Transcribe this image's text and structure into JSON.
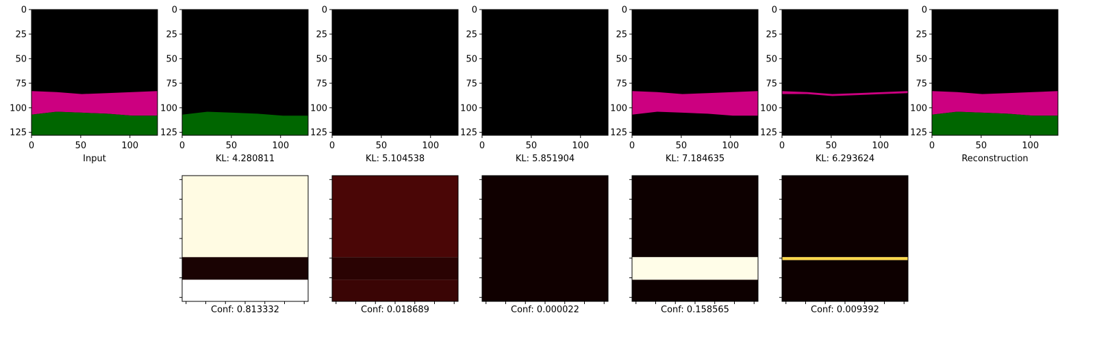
{
  "chart_data": {
    "type": "heatmap",
    "image_size": [
      128,
      128
    ],
    "axes": {
      "xlim": [
        0,
        128
      ],
      "ylim": [
        128,
        0
      ],
      "xticks": [
        0,
        50,
        100
      ],
      "yticks": [
        0,
        25,
        50,
        75,
        100,
        125
      ]
    },
    "colors": {
      "black": "#000000",
      "magenta": "#cc0080",
      "green": "#006600"
    },
    "top_row": [
      {
        "caption": "Input",
        "kind": "segmentation",
        "layers": [
          {
            "color": "magenta",
            "top": [
              83,
              84,
              86,
              85,
              84,
              83
            ],
            "bottom": [
              107,
              104,
              105,
              106,
              108,
              108
            ]
          },
          {
            "color": "green",
            "top": [
              107,
              104,
              105,
              106,
              108,
              108
            ],
            "bottom": [
              128,
              128,
              128,
              128,
              128,
              128
            ]
          }
        ]
      },
      {
        "caption": "KL: 4.280811",
        "kind": "segmentation",
        "layers": [
          {
            "color": "green",
            "top": [
              107,
              104,
              105,
              106,
              108,
              108
            ],
            "bottom": [
              128,
              128,
              128,
              128,
              128,
              128
            ]
          }
        ]
      },
      {
        "caption": "KL: 5.104538",
        "kind": "segmentation",
        "layers": []
      },
      {
        "caption": "KL: 5.851904",
        "kind": "segmentation",
        "layers": []
      },
      {
        "caption": "KL: 7.184635",
        "kind": "segmentation",
        "layers": [
          {
            "color": "magenta",
            "top": [
              83,
              84,
              86,
              85,
              84,
              83
            ],
            "bottom": [
              107,
              104,
              105,
              106,
              108,
              108
            ]
          }
        ]
      },
      {
        "caption": "KL: 6.293624",
        "kind": "segmentation",
        "layers": [
          {
            "color": "magenta",
            "top": [
              83,
              84,
              86,
              85,
              84,
              83
            ],
            "bottom": [
              86,
              86,
              88,
              87,
              86,
              85
            ]
          }
        ]
      },
      {
        "caption": "Reconstruction",
        "kind": "segmentation",
        "layers": [
          {
            "color": "magenta",
            "top": [
              83,
              84,
              86,
              85,
              84,
              83
            ],
            "bottom": [
              107,
              104,
              105,
              106,
              108,
              108
            ]
          },
          {
            "color": "green",
            "top": [
              107,
              104,
              105,
              106,
              108,
              108
            ],
            "bottom": [
              128,
              128,
              128,
              128,
              128,
              128
            ]
          }
        ]
      }
    ],
    "bottom_row": [
      {
        "caption": "Conf: 0.813332",
        "column": 1,
        "bands": [
          {
            "color": "#fffbe3",
            "top": 0,
            "bottom": 83
          },
          {
            "color": "#1a0303",
            "top": 83,
            "bottom": 106
          },
          {
            "color": "#ffffff",
            "top": 106,
            "bottom": 128
          }
        ]
      },
      {
        "caption": "Conf: 0.018689",
        "column": 2,
        "bands": [
          {
            "color": "#4a0606",
            "top": 0,
            "bottom": 83
          },
          {
            "color": "#2a0303",
            "top": 83,
            "bottom": 106
          },
          {
            "color": "#3a0505",
            "top": 106,
            "bottom": 128
          }
        ]
      },
      {
        "caption": "Conf: 0.000022",
        "column": 3,
        "bands": [
          {
            "color": "#100000",
            "top": 0,
            "bottom": 128
          }
        ]
      },
      {
        "caption": "Conf: 0.158565",
        "column": 4,
        "bands": [
          {
            "color": "#0d0000",
            "top": 0,
            "bottom": 83
          },
          {
            "color": "#fffde8",
            "top": 83,
            "bottom": 106
          },
          {
            "color": "#0d0000",
            "top": 106,
            "bottom": 128
          }
        ]
      },
      {
        "caption": "Conf: 0.009392",
        "column": 5,
        "bands": [
          {
            "color": "#0d0000",
            "top": 0,
            "bottom": 83
          },
          {
            "color": "#ffd84a",
            "top": 83,
            "bottom": 86
          },
          {
            "color": "#0d0000",
            "top": 86,
            "bottom": 128
          }
        ]
      }
    ]
  }
}
